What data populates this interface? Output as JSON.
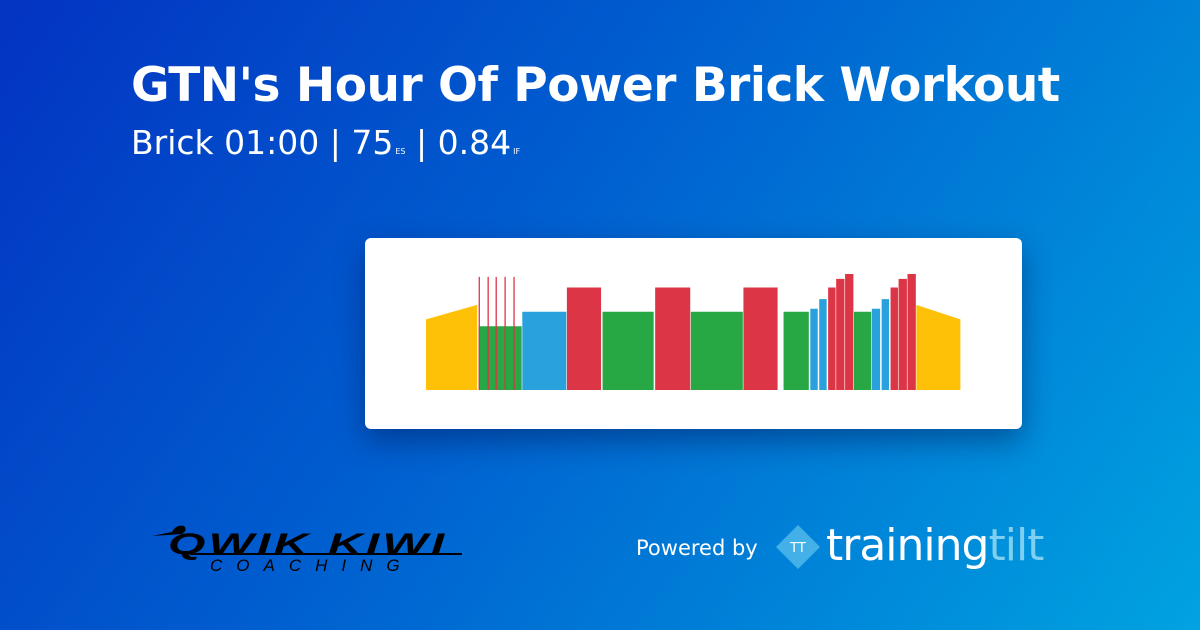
{
  "header": {
    "title": "GTN's Hour Of Power Brick Workout",
    "subtitle": {
      "type": "Brick",
      "duration": "01:00",
      "es_value": "75",
      "es_label": "ES",
      "if_value": "0.84",
      "if_label": "IF",
      "separator": "|"
    }
  },
  "footer": {
    "coach_logo": {
      "main": "QWIK KIWI",
      "sub": "COACHING"
    },
    "powered_by": "Powered by",
    "brand": {
      "icon_text": "TT",
      "word_a": "training",
      "word_b": "tilt"
    }
  },
  "chart_data": {
    "type": "bar",
    "x_unit": "minutes",
    "y_unit": "% FTP (relative intensity)",
    "xlim": [
      0,
      60
    ],
    "colors": {
      "warmup": "#ffc107",
      "endurance": "#28a745",
      "tempo": "#28a1dc",
      "threshold": "#dc3545"
    },
    "segments": [
      {
        "start": 0,
        "end": 5.8,
        "from": 73,
        "to": 88,
        "zone": "warmup"
      },
      {
        "start": 5.9,
        "end": 10.8,
        "from": 66,
        "to": 66,
        "zone": "endurance"
      },
      {
        "start": 10.8,
        "end": 15.8,
        "from": 81,
        "to": 81,
        "zone": "tempo"
      },
      {
        "start": 15.8,
        "end": 19.7,
        "from": 106,
        "to": 106,
        "zone": "threshold"
      },
      {
        "start": 19.8,
        "end": 25.6,
        "from": 81,
        "to": 81,
        "zone": "endurance"
      },
      {
        "start": 25.7,
        "end": 29.7,
        "from": 106,
        "to": 106,
        "zone": "threshold"
      },
      {
        "start": 29.7,
        "end": 35.6,
        "from": 81,
        "to": 81,
        "zone": "endurance"
      },
      {
        "start": 35.6,
        "end": 39.5,
        "from": 106,
        "to": 106,
        "zone": "threshold"
      },
      {
        "start": 40.1,
        "end": 43.0,
        "from": 81,
        "to": 81,
        "zone": "endurance"
      },
      {
        "start": 43.1,
        "end": 44.0,
        "from": 84,
        "to": 84,
        "zone": "tempo"
      },
      {
        "start": 44.1,
        "end": 45.0,
        "from": 94,
        "to": 94,
        "zone": "tempo"
      },
      {
        "start": 45.1,
        "end": 46.0,
        "from": 106,
        "to": 106,
        "zone": "threshold"
      },
      {
        "start": 46.0,
        "end": 47.0,
        "from": 115,
        "to": 115,
        "zone": "threshold"
      },
      {
        "start": 47.0,
        "end": 48.0,
        "from": 120,
        "to": 120,
        "zone": "threshold"
      },
      {
        "start": 48.0,
        "end": 50.0,
        "from": 81,
        "to": 81,
        "zone": "endurance"
      },
      {
        "start": 50.0,
        "end": 51.0,
        "from": 84,
        "to": 84,
        "zone": "tempo"
      },
      {
        "start": 51.1,
        "end": 52.0,
        "from": 94,
        "to": 94,
        "zone": "tempo"
      },
      {
        "start": 52.1,
        "end": 53.0,
        "from": 106,
        "to": 106,
        "zone": "threshold"
      },
      {
        "start": 53.0,
        "end": 54.0,
        "from": 115,
        "to": 115,
        "zone": "threshold"
      },
      {
        "start": 54.0,
        "end": 55.0,
        "from": 120,
        "to": 120,
        "zone": "threshold"
      },
      {
        "start": 55.0,
        "end": 60.0,
        "from": 88,
        "to": 73,
        "zone": "warmup"
      }
    ],
    "spikes": [
      {
        "at": 5.9,
        "value": 117
      },
      {
        "at": 6.9,
        "value": 117
      },
      {
        "at": 7.8,
        "value": 117
      },
      {
        "at": 8.8,
        "value": 117
      },
      {
        "at": 9.8,
        "value": 117
      }
    ]
  }
}
